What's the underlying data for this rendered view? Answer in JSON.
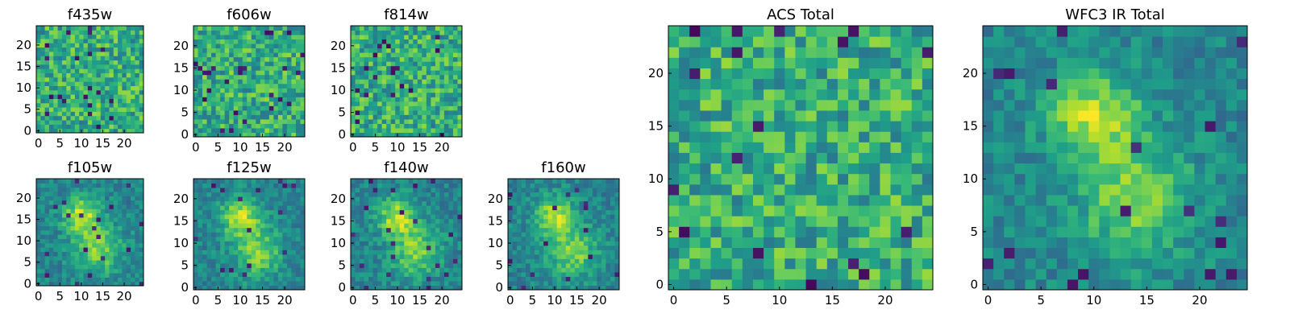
{
  "chart_data": [
    {
      "type": "heatmap",
      "title": "f435w",
      "colormap": "viridis",
      "grid_size": 25,
      "xlim": [
        0,
        24
      ],
      "ylim": [
        0,
        24
      ],
      "xticks": [
        "0",
        "5",
        "10",
        "15",
        "20"
      ],
      "yticks": [
        "0",
        "5",
        "10",
        "15",
        "20"
      ],
      "pattern": "noise",
      "seed": 11
    },
    {
      "type": "heatmap",
      "title": "f606w",
      "colormap": "viridis",
      "grid_size": 25,
      "xlim": [
        0,
        24
      ],
      "ylim": [
        0,
        24
      ],
      "xticks": [
        "0",
        "5",
        "10",
        "15",
        "20"
      ],
      "yticks": [
        "0",
        "5",
        "10",
        "15",
        "20"
      ],
      "pattern": "noise",
      "seed": 23
    },
    {
      "type": "heatmap",
      "title": "f814w",
      "colormap": "viridis",
      "grid_size": 25,
      "xlim": [
        0,
        24
      ],
      "ylim": [
        0,
        24
      ],
      "xticks": [
        "0",
        "5",
        "10",
        "15",
        "20"
      ],
      "yticks": [
        "0",
        "5",
        "10",
        "15",
        "20"
      ],
      "pattern": "noise",
      "seed": 37
    },
    {
      "type": "heatmap",
      "title": "f105w",
      "colormap": "viridis",
      "grid_size": 25,
      "xlim": [
        0,
        24
      ],
      "ylim": [
        0,
        24
      ],
      "xticks": [
        "0",
        "5",
        "10",
        "15",
        "20"
      ],
      "yticks": [
        "0",
        "5",
        "10",
        "15",
        "20"
      ],
      "pattern": "source",
      "seed": 41
    },
    {
      "type": "heatmap",
      "title": "f125w",
      "colormap": "viridis",
      "grid_size": 25,
      "xlim": [
        0,
        24
      ],
      "ylim": [
        0,
        24
      ],
      "xticks": [
        "0",
        "5",
        "10",
        "15",
        "20"
      ],
      "yticks": [
        "0",
        "5",
        "10",
        "15",
        "20"
      ],
      "pattern": "source",
      "seed": 53
    },
    {
      "type": "heatmap",
      "title": "f140w",
      "colormap": "viridis",
      "grid_size": 25,
      "xlim": [
        0,
        24
      ],
      "ylim": [
        0,
        24
      ],
      "xticks": [
        "0",
        "5",
        "10",
        "15",
        "20"
      ],
      "yticks": [
        "0",
        "5",
        "10",
        "15",
        "20"
      ],
      "pattern": "source",
      "seed": 67
    },
    {
      "type": "heatmap",
      "title": "f160w",
      "colormap": "viridis",
      "grid_size": 25,
      "xlim": [
        0,
        24
      ],
      "ylim": [
        0,
        24
      ],
      "xticks": [
        "0",
        "5",
        "10",
        "15",
        "20"
      ],
      "yticks": [
        "0",
        "5",
        "10",
        "15",
        "20"
      ],
      "pattern": "source",
      "seed": 79
    },
    {
      "type": "heatmap",
      "title": "ACS Total",
      "colormap": "viridis",
      "grid_size": 25,
      "xlim": [
        0,
        24
      ],
      "ylim": [
        0,
        24
      ],
      "xticks": [
        "0",
        "5",
        "10",
        "15",
        "20"
      ],
      "yticks": [
        "0",
        "5",
        "10",
        "15",
        "20"
      ],
      "pattern": "noise",
      "seed": 97
    },
    {
      "type": "heatmap",
      "title": "WFC3 IR Total",
      "colormap": "viridis",
      "grid_size": 25,
      "xlim": [
        0,
        24
      ],
      "ylim": [
        0,
        24
      ],
      "xticks": [
        "0",
        "5",
        "10",
        "15",
        "20"
      ],
      "yticks": [
        "0",
        "5",
        "10",
        "15",
        "20"
      ],
      "pattern": "source",
      "seed": 113
    }
  ]
}
